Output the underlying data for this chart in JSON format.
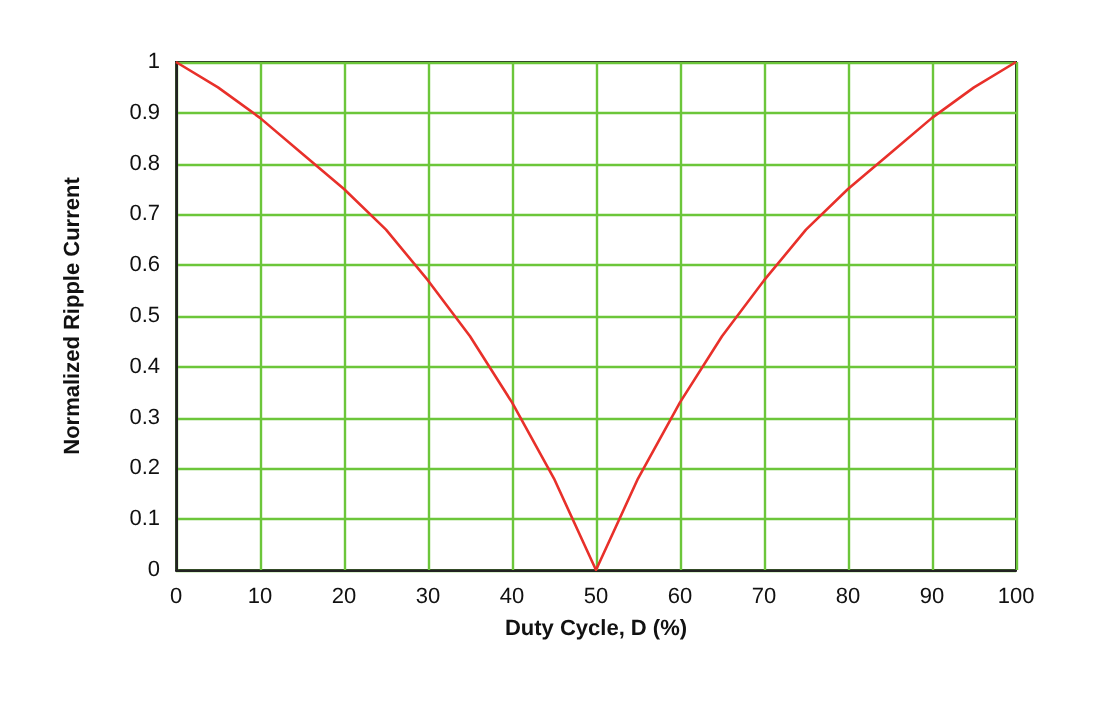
{
  "chart_data": {
    "type": "line",
    "xlabel": "Duty Cycle, D (%)",
    "ylabel": "Normalized Ripple Current",
    "x": [
      0,
      5,
      10,
      15,
      20,
      25,
      30,
      35,
      40,
      45,
      50,
      55,
      60,
      65,
      70,
      75,
      80,
      85,
      90,
      95,
      100
    ],
    "series": [
      {
        "color": "#e8302a",
        "values": [
          1,
          0.95,
          0.89,
          0.82,
          0.75,
          0.67,
          0.57,
          0.46,
          0.33,
          0.18,
          0,
          0.18,
          0.33,
          0.46,
          0.57,
          0.67,
          0.75,
          0.82,
          0.89,
          0.95,
          1
        ]
      }
    ],
    "xlim": [
      0,
      100
    ],
    "xticks": [
      0,
      10,
      20,
      30,
      40,
      50,
      60,
      70,
      80,
      90,
      100
    ],
    "ylim": [
      0,
      1
    ],
    "yticks": [
      0,
      0.1,
      0.2,
      0.3,
      0.4,
      0.5,
      0.6,
      0.7,
      0.8,
      0.9,
      1
    ],
    "grid": true,
    "marker": "none",
    "line_style": "solid"
  }
}
